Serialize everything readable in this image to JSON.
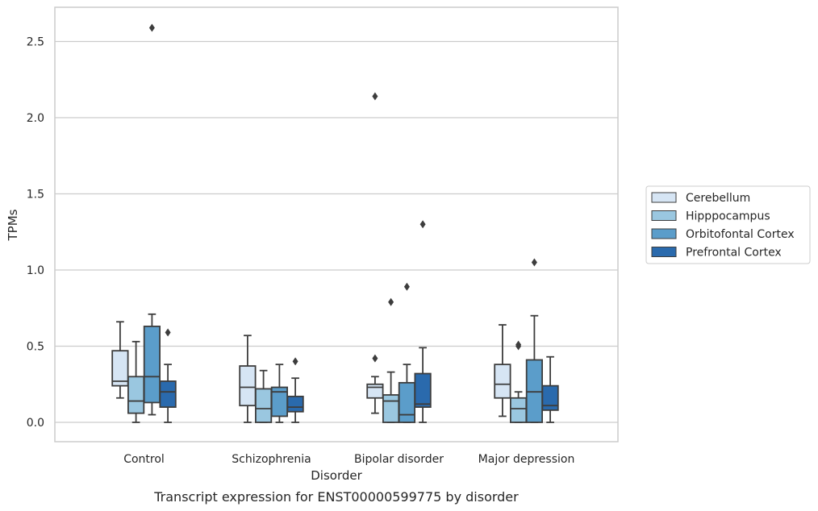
{
  "chart_data": {
    "type": "box",
    "title": "",
    "caption": "Transcript expression for ENST00000599775 by disorder",
    "xlabel": "Disorder",
    "ylabel": "TPMs",
    "ylim": [
      -0.12,
      2.7
    ],
    "yticks": [
      "0.0",
      "0.5",
      "1.0",
      "1.5",
      "2.0",
      "2.5"
    ],
    "ytick_values": [
      0.0,
      0.5,
      1.0,
      1.5,
      2.0,
      2.5
    ],
    "grid": "horizontal",
    "legend_position": "right",
    "categories": [
      "Control",
      "Schizophrenia",
      "Bipolar disorder",
      "Major depression"
    ],
    "series": [
      {
        "name": "Cerebellum",
        "color": "#d6e5f4",
        "boxes": [
          {
            "whisker_low": 0.16,
            "q1": 0.24,
            "median": 0.27,
            "q3": 0.47,
            "whisker_high": 0.66,
            "outliers": []
          },
          {
            "whisker_low": 0.0,
            "q1": 0.11,
            "median": 0.23,
            "q3": 0.37,
            "whisker_high": 0.57,
            "outliers": []
          },
          {
            "whisker_low": 0.06,
            "q1": 0.16,
            "median": 0.23,
            "q3": 0.25,
            "whisker_high": 0.3,
            "outliers": [
              0.42,
              2.14
            ]
          },
          {
            "whisker_low": 0.04,
            "q1": 0.16,
            "median": 0.25,
            "q3": 0.38,
            "whisker_high": 0.64,
            "outliers": []
          }
        ]
      },
      {
        "name": "Hipppocampus",
        "color": "#9ac7e0",
        "boxes": [
          {
            "whisker_low": 0.0,
            "q1": 0.06,
            "median": 0.14,
            "q3": 0.3,
            "whisker_high": 0.53,
            "outliers": []
          },
          {
            "whisker_low": 0.0,
            "q1": 0.0,
            "median": 0.09,
            "q3": 0.22,
            "whisker_high": 0.34,
            "outliers": []
          },
          {
            "whisker_low": 0.0,
            "q1": 0.0,
            "median": 0.14,
            "q3": 0.18,
            "whisker_high": 0.33,
            "outliers": [
              0.79
            ]
          },
          {
            "whisker_low": 0.0,
            "q1": 0.0,
            "median": 0.09,
            "q3": 0.16,
            "whisker_high": 0.2,
            "outliers": [
              0.5,
              0.51
            ]
          }
        ]
      },
      {
        "name": "Orbitofontal Cortex",
        "color": "#5b9dca",
        "boxes": [
          {
            "whisker_low": 0.05,
            "q1": 0.13,
            "median": 0.3,
            "q3": 0.63,
            "whisker_high": 0.71,
            "outliers": [
              2.59
            ]
          },
          {
            "whisker_low": 0.0,
            "q1": 0.04,
            "median": 0.2,
            "q3": 0.23,
            "whisker_high": 0.38,
            "outliers": []
          },
          {
            "whisker_low": 0.0,
            "q1": 0.0,
            "median": 0.05,
            "q3": 0.26,
            "whisker_high": 0.38,
            "outliers": [
              0.89
            ]
          },
          {
            "whisker_low": 0.0,
            "q1": 0.0,
            "median": 0.2,
            "q3": 0.41,
            "whisker_high": 0.7,
            "outliers": [
              1.05
            ]
          }
        ]
      },
      {
        "name": "Prefrontal Cortex",
        "color": "#2a6aad",
        "boxes": [
          {
            "whisker_low": 0.0,
            "q1": 0.1,
            "median": 0.2,
            "q3": 0.27,
            "whisker_high": 0.38,
            "outliers": [
              0.59
            ]
          },
          {
            "whisker_low": 0.0,
            "q1": 0.07,
            "median": 0.1,
            "q3": 0.17,
            "whisker_high": 0.29,
            "outliers": [
              0.4
            ]
          },
          {
            "whisker_low": 0.0,
            "q1": 0.1,
            "median": 0.12,
            "q3": 0.32,
            "whisker_high": 0.49,
            "outliers": [
              1.3
            ]
          },
          {
            "whisker_low": 0.0,
            "q1": 0.08,
            "median": 0.11,
            "q3": 0.24,
            "whisker_high": 0.43,
            "outliers": []
          }
        ]
      }
    ]
  }
}
